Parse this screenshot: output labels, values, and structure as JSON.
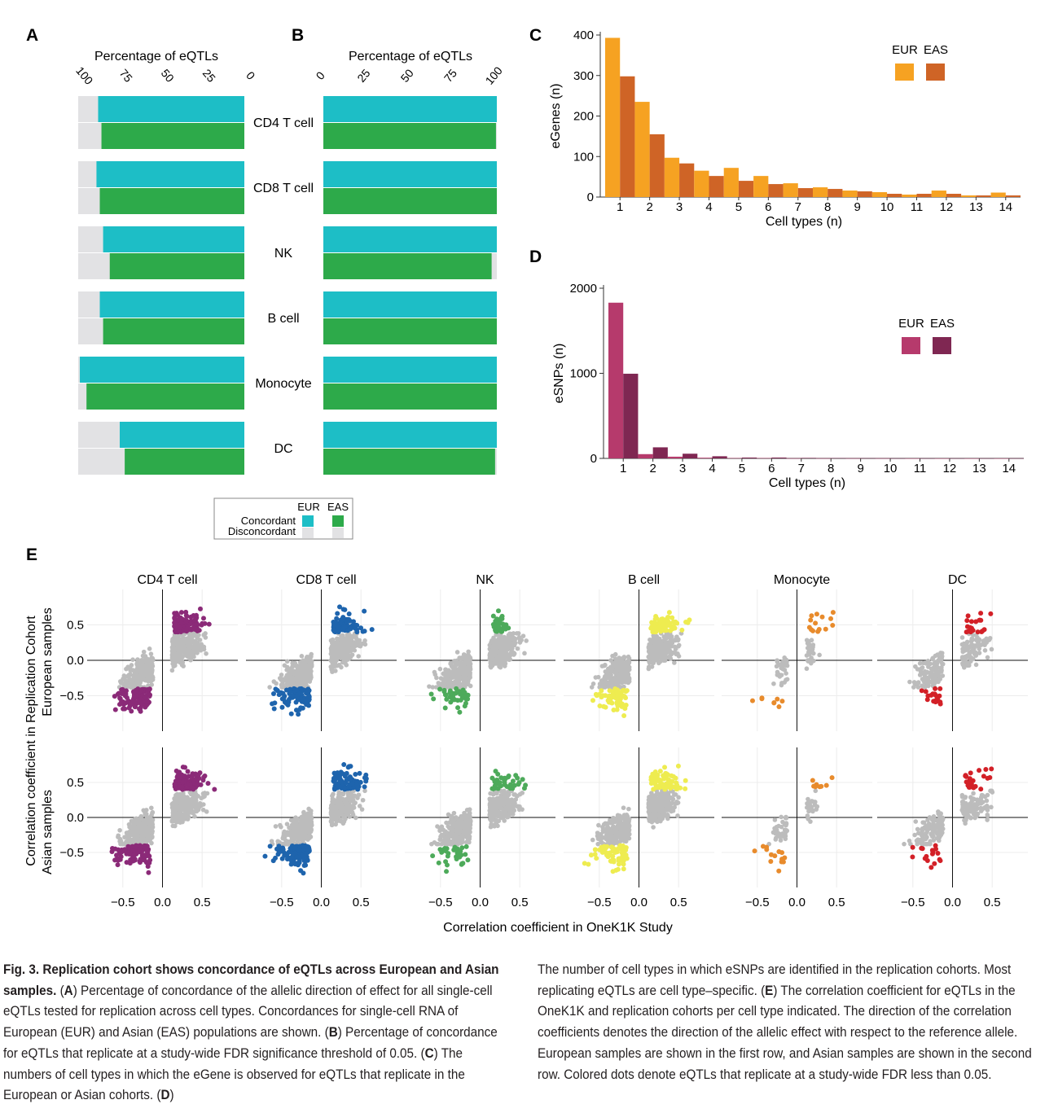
{
  "figure": {
    "colors": {
      "eur_concordant": "#1dbec6",
      "eas_concordant": "#2daa4a",
      "discordant": "#e2e2e4",
      "c_eur": "#f6a222",
      "c_eas": "#cf6426",
      "d_eur": "#b63a6c",
      "d_eas": "#7f2752",
      "grey_dots": "#bcbcbc",
      "e_cd4": "#8b2a78",
      "e_cd8": "#1e64ad",
      "e_nk": "#4daa5a",
      "e_bcell": "#eeec50",
      "e_mono": "#e88b2c",
      "e_dc": "#d32027"
    },
    "panel_labels": {
      "a": "A",
      "b": "B",
      "c": "C",
      "d": "D",
      "e": "E"
    }
  },
  "chart_data": [
    {
      "panel": "A",
      "type": "bar",
      "orientation": "horizontal",
      "title": "Percentage of eQTLs",
      "xlim": [
        100,
        0
      ],
      "ticks": [
        "100",
        "75",
        "50",
        "25",
        "0"
      ],
      "categories": [
        "CD4 T cell",
        "CD8 T cell",
        "NK",
        "B cell",
        "Monocyte",
        "DC"
      ],
      "series": [
        {
          "name": "EUR Concordant",
          "values": [
            88,
            89,
            85,
            87,
            99,
            75
          ]
        },
        {
          "name": "EAS Concordant",
          "values": [
            86,
            87,
            81,
            85,
            95,
            72
          ]
        }
      ]
    },
    {
      "panel": "B",
      "type": "bar",
      "orientation": "horizontal",
      "title": "Percentage of eQTLs",
      "xlim": [
        0,
        100
      ],
      "ticks": [
        "0",
        "25",
        "50",
        "75",
        "100"
      ],
      "categories": [
        "CD4 T cell",
        "CD8 T cell",
        "NK",
        "B cell",
        "Monocyte",
        "DC"
      ],
      "series": [
        {
          "name": "EUR Concordant",
          "values": [
            100,
            100,
            100,
            100,
            100,
            100
          ]
        },
        {
          "name": "EAS Concordant",
          "values": [
            99.5,
            100,
            97,
            100,
            100,
            99
          ]
        }
      ],
      "legend": {
        "eur": "EUR",
        "eas": "EAS",
        "concordant": "Concordant",
        "disconcordant": "Disconcordant"
      }
    },
    {
      "panel": "C",
      "type": "bar",
      "xlabel": "Cell types (n)",
      "ylabel": "eGenes (n)",
      "ylim": [
        0,
        400
      ],
      "yticks": [
        "0",
        "100",
        "200",
        "300",
        "400"
      ],
      "categories": [
        "1",
        "2",
        "3",
        "4",
        "5",
        "6",
        "7",
        "8",
        "9",
        "10",
        "11",
        "12",
        "13",
        "14"
      ],
      "series": [
        {
          "name": "EUR",
          "values": [
            393,
            235,
            97,
            65,
            72,
            52,
            34,
            24,
            16,
            12,
            6,
            16,
            4,
            11
          ]
        },
        {
          "name": "EAS",
          "values": [
            298,
            155,
            83,
            52,
            40,
            32,
            22,
            20,
            14,
            8,
            8,
            8,
            4,
            4
          ]
        }
      ]
    },
    {
      "panel": "D",
      "type": "bar",
      "xlabel": "Cell types (n)",
      "ylabel": "eSNPs (n)",
      "ylim": [
        0,
        2000
      ],
      "yticks": [
        "0",
        "1000",
        "2000"
      ],
      "categories": [
        "1",
        "2",
        "3",
        "4",
        "5",
        "6",
        "7",
        "8",
        "9",
        "10",
        "11",
        "12",
        "13",
        "14"
      ],
      "series": [
        {
          "name": "EUR",
          "values": [
            1830,
            50,
            20,
            8,
            4,
            4,
            2,
            2,
            2,
            2,
            1,
            1,
            1,
            1
          ]
        },
        {
          "name": "EAS",
          "values": [
            995,
            130,
            55,
            25,
            10,
            10,
            6,
            4,
            3,
            2,
            2,
            2,
            2,
            2
          ]
        }
      ]
    },
    {
      "panel": "E",
      "type": "scatter",
      "xlabel": "Correlation coefficient in OneK1K Study",
      "ylabel": "Correlation coefficient in Replication Cohort",
      "row_labels": [
        "European samples",
        "Asian samples"
      ],
      "facets": [
        "CD4 T cell",
        "CD8 T cell",
        "NK",
        "B cell",
        "Monocyte",
        "DC"
      ],
      "xticks": [
        "−0.5",
        "0.0",
        "0.5"
      ],
      "yticks": [
        "0.5",
        "0.0",
        "−0.5"
      ],
      "xlim": [
        -0.95,
        0.95
      ],
      "ylim": [
        -1.0,
        1.0
      ],
      "note": "Grey points = all tested eQTLs; colored points = eQTLs replicating at study-wide FDR < 0.05"
    }
  ],
  "caption": {
    "bold_title": "Fig. 3. Replication cohort shows concordance of eQTLs across European and Asian samples.",
    "segments": [
      {
        "label": "A",
        "text": "Percentage of concordance of the allelic direction of effect for all single-cell eQTLs tested for replication across cell types. Concordances for single-cell RNA of European (EUR) and Asian (EAS) populations are shown."
      },
      {
        "label": "B",
        "text": "Percentage of concordance for eQTLs that replicate at a study-wide FDR significance threshold of 0.05."
      },
      {
        "label": "C",
        "text": "The numbers of cell types in which the eGene is observed for eQTLs that replicate in the European or Asian cohorts."
      },
      {
        "label": "D",
        "text": "The number of cell types in which eSNPs are identified in the replication cohorts. Most replicating eQTLs are cell type–specific."
      },
      {
        "label": "E",
        "text": "The correlation coefficient for eQTLs in the OneK1K and replication cohorts per cell type indicated. The direction of the correlation coefficients denotes the direction of the allelic effect with respect to the reference allele. European samples are shown in the first row, and Asian samples are shown in the second row. Colored dots denote eQTLs that replicate at a study-wide FDR less than 0.05."
      }
    ]
  }
}
